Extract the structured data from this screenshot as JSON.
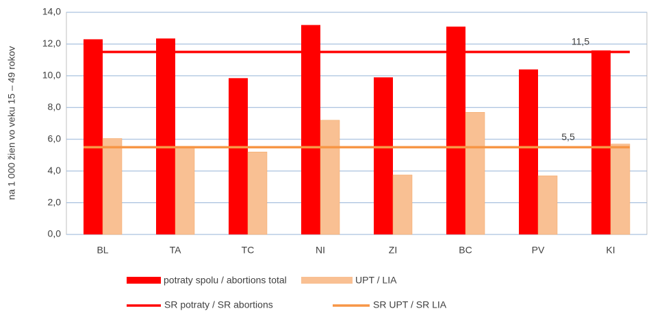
{
  "chart_data": {
    "type": "bar",
    "y_label": "na 1 000 žien vo veku 15 – 49 rokov",
    "categories": [
      "BL",
      "TA",
      "TC",
      "NI",
      "ZI",
      "BC",
      "PV",
      "KI"
    ],
    "series": [
      {
        "name": "potraty spolu / abortions total",
        "color": "#ff0000",
        "values": [
          12.3,
          12.35,
          9.85,
          13.2,
          9.9,
          13.1,
          10.4,
          11.6
        ]
      },
      {
        "name": "UPT / LIA",
        "color": "#f9c093",
        "values": [
          6.05,
          5.55,
          5.2,
          7.2,
          3.75,
          7.7,
          3.7,
          5.7
        ]
      }
    ],
    "lines": [
      {
        "name": "SR potraty / SR abortions",
        "color": "#ff0000",
        "value": 11.5,
        "value_label": "11,5"
      },
      {
        "name": "SR UPT / SR LIA",
        "color": "#f79646",
        "value": 5.5,
        "value_label": "5,5"
      }
    ],
    "ylim": [
      0,
      14
    ],
    "yticks": [
      {
        "value": 0,
        "label": "0,0"
      },
      {
        "value": 2,
        "label": "2,0"
      },
      {
        "value": 4,
        "label": "4,0"
      },
      {
        "value": 6,
        "label": "6,0"
      },
      {
        "value": 8,
        "label": "8,0"
      },
      {
        "value": 10,
        "label": "10,0"
      },
      {
        "value": 12,
        "label": "12,0"
      },
      {
        "value": 14,
        "label": "14,0"
      }
    ],
    "grid": true
  }
}
